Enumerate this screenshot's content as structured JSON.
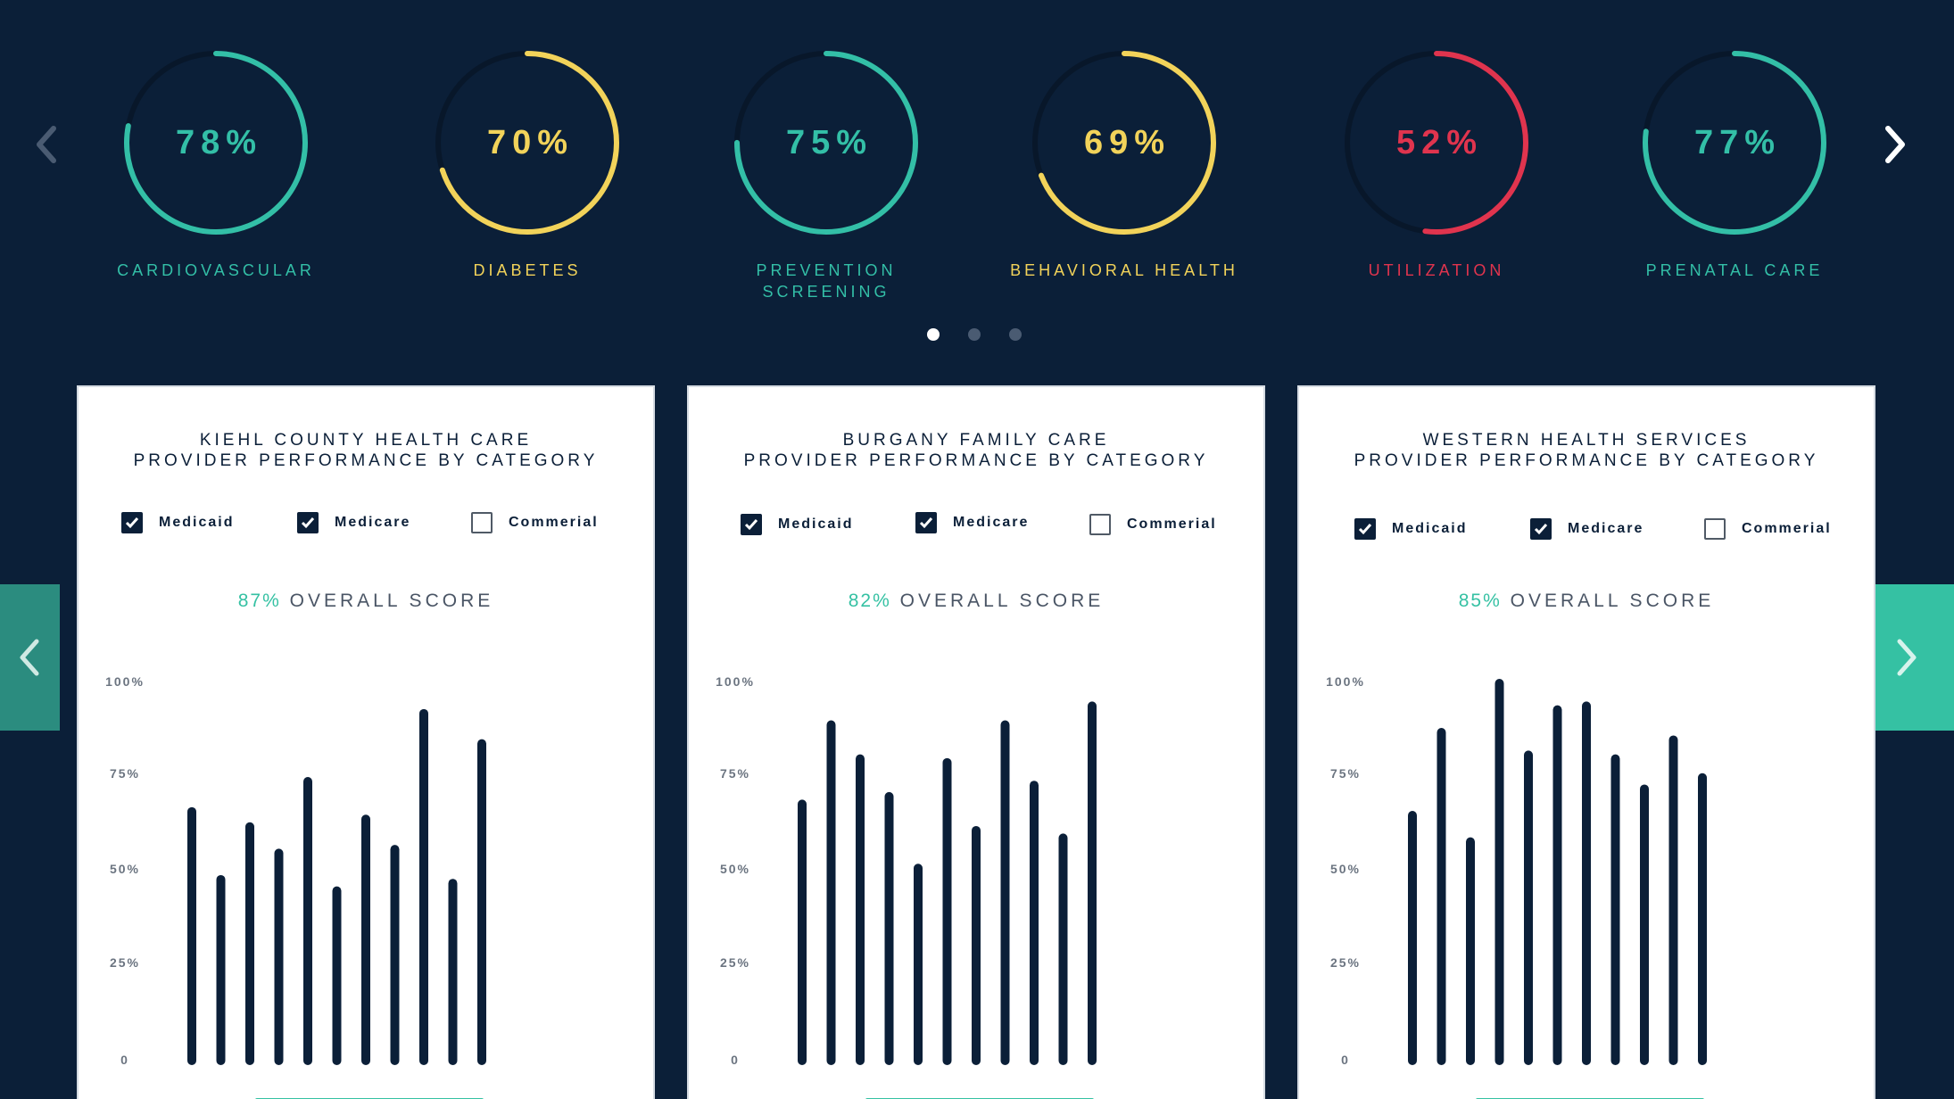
{
  "gauges": [
    {
      "value": 78,
      "value_label": "78%",
      "label": "CARDIOVASCULAR",
      "color": "#33bfa7"
    },
    {
      "value": 70,
      "value_label": "70%",
      "label": "DIABETES",
      "color": "#f2d35a"
    },
    {
      "value": 75,
      "value_label": "75%",
      "label": "PREVENTION SCREENING",
      "color": "#33bfa7"
    },
    {
      "value": 69,
      "value_label": "69%",
      "label": "BEHAVIORAL HEALTH",
      "color": "#f2d35a"
    },
    {
      "value": 52,
      "value_label": "52%",
      "label": "UTILIZATION",
      "color": "#e0344e"
    },
    {
      "value": 77,
      "value_label": "77%",
      "label": "PRENATAL CARE",
      "color": "#33bfa7"
    }
  ],
  "pagination": {
    "pages": 3,
    "active": 0
  },
  "icons": {
    "prev_top": "chevron-left-icon",
    "next_top": "chevron-right-icon",
    "prev_side": "chevron-left-icon",
    "next_side": "chevron-right-icon",
    "checkbox_checked": "check-icon"
  },
  "colors": {
    "background": "#0b1f38",
    "accent_teal": "#35c1a3",
    "accent_yellow": "#f2d35a",
    "accent_red": "#e0344e",
    "bar": "#0b1f38"
  },
  "cards": [
    {
      "title_line1": "KIEHL COUNTY HEALTH CARE",
      "title_line2": "PROVIDER PERFORMANCE BY CATEGORY",
      "legend": [
        {
          "label": "Medicaid",
          "checked": true
        },
        {
          "label": "Medicare",
          "checked": true
        },
        {
          "label": "Commerial",
          "checked": false
        }
      ],
      "overall_pct": "87%",
      "overall_label": "OVERALL SCORE",
      "chart_data": {
        "type": "bar",
        "y_ticks": [
          "100%",
          "75%",
          "50%",
          "25%",
          "0"
        ],
        "ylim": [
          0,
          100
        ],
        "values": [
          66,
          48,
          62,
          55,
          74,
          45,
          64,
          56,
          92,
          47,
          84
        ]
      }
    },
    {
      "title_line1": "BURGANY FAMILY CARE",
      "title_line2": "PROVIDER PERFORMANCE BY CATEGORY",
      "legend": [
        {
          "label": "Medicaid",
          "checked": true
        },
        {
          "label": "Medicare",
          "checked": true
        },
        {
          "label": "Commerial",
          "checked": false
        }
      ],
      "overall_pct": "82%",
      "overall_label": "OVERALL SCORE",
      "chart_data": {
        "type": "bar",
        "y_ticks": [
          "100%",
          "75%",
          "50%",
          "25%",
          "0"
        ],
        "ylim": [
          0,
          100
        ],
        "values": [
          68,
          89,
          80,
          70,
          51,
          79,
          61,
          89,
          73,
          59,
          94
        ]
      }
    },
    {
      "title_line1": "WESTERN HEALTH SERVICES",
      "title_line2": "PROVIDER PERFORMANCE BY CATEGORY",
      "legend": [
        {
          "label": "Medicaid",
          "checked": true
        },
        {
          "label": "Medicare",
          "checked": true
        },
        {
          "label": "Commerial",
          "checked": false
        }
      ],
      "overall_pct": "85%",
      "overall_label": "OVERALL SCORE",
      "chart_data": {
        "type": "bar",
        "y_ticks": [
          "100%",
          "75%",
          "50%",
          "25%",
          "0"
        ],
        "ylim": [
          0,
          100
        ],
        "values": [
          65,
          87,
          58,
          100,
          81,
          93,
          94,
          80,
          72,
          85,
          75
        ]
      }
    }
  ]
}
